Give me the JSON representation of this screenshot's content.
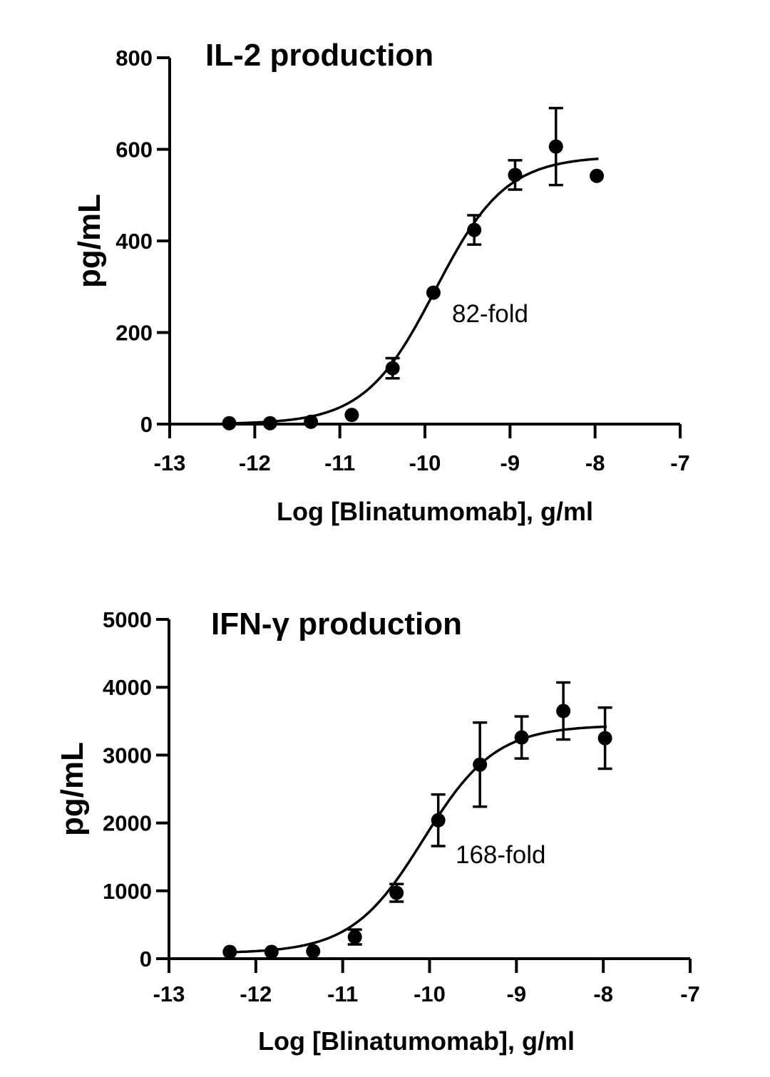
{
  "chart_data": [
    {
      "type": "scatter",
      "title": "IL-2 production",
      "xlabel": "Log [Blinatumomab], g/ml",
      "ylabel": "pg/mL",
      "xlim": [
        -13,
        -7
      ],
      "ylim": [
        0,
        800
      ],
      "xticks": [
        "-13",
        "-12",
        "-11",
        "-10",
        "-9",
        "-8",
        "-7"
      ],
      "yticks": [
        "0",
        "200",
        "400",
        "600",
        "800"
      ],
      "grid": false,
      "series": [
        {
          "x": [
            -12.3,
            -11.82,
            -11.34,
            -10.86,
            -10.38,
            -9.9,
            -9.42,
            -8.94,
            -8.46,
            -7.98
          ],
          "y": [
            2,
            2,
            5,
            20,
            122,
            287,
            424,
            544,
            606,
            542
          ],
          "err": [
            0,
            0,
            0,
            0,
            22,
            0,
            32,
            32,
            84,
            0
          ]
        }
      ],
      "fit": {
        "bottom": 0,
        "top": 585,
        "log_ec50": -9.88,
        "hill": 1.05
      },
      "annotations": [
        "82-fold"
      ]
    },
    {
      "type": "scatter",
      "title": "IFN-γ production",
      "xlabel": "Log [Blinatumomab], g/ml",
      "ylabel": "pg/mL",
      "xlim": [
        -13,
        -7
      ],
      "ylim": [
        0,
        5000
      ],
      "xticks": [
        "-13",
        "-12",
        "-11",
        "-10",
        "-9",
        "-8",
        "-7"
      ],
      "yticks": [
        "0",
        "1000",
        "2000",
        "3000",
        "4000",
        "5000"
      ],
      "grid": false,
      "series": [
        {
          "x": [
            -12.3,
            -11.82,
            -11.34,
            -10.86,
            -10.38,
            -9.9,
            -9.42,
            -8.94,
            -8.46,
            -7.98
          ],
          "y": [
            100,
            100,
            110,
            320,
            970,
            2040,
            2860,
            3260,
            3650,
            3250
          ],
          "err": [
            0,
            0,
            0,
            110,
            130,
            380,
            620,
            310,
            420,
            450
          ]
        }
      ],
      "fit": {
        "bottom": 80,
        "top": 3440,
        "log_ec50": -10.07,
        "hill": 1.05
      },
      "annotations": [
        "168-fold"
      ]
    }
  ]
}
